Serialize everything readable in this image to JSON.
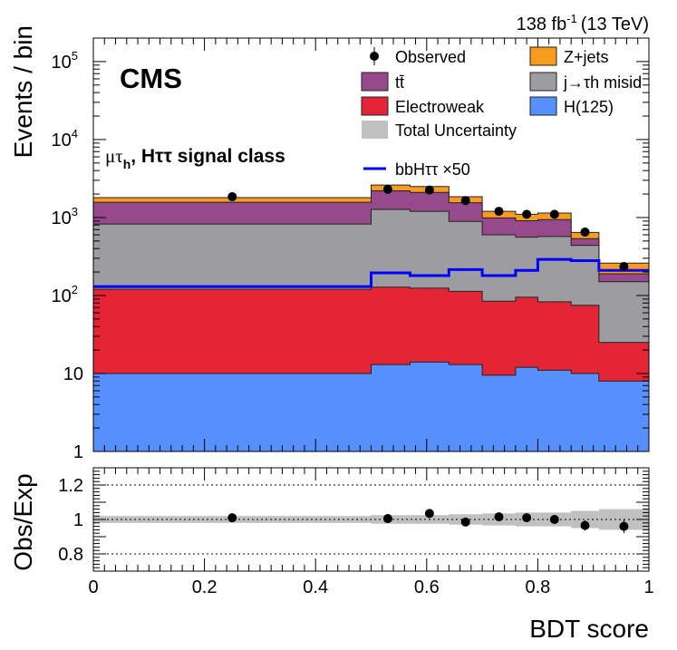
{
  "chart_data": {
    "type": "histogram",
    "lumi_label": "138 fb",
    "lumi_sup": "-1",
    "lumi_energy": "(13 TeV)",
    "experiment": "CMS",
    "category_label": {
      "mu": "μτ",
      "sub": "h",
      "rest": ", Hττ signal class"
    },
    "ylabel": "Events / bin",
    "ratio_ylabel": "Obs/Exp",
    "xlabel": "BDT score",
    "xlim": [
      0,
      1
    ],
    "ylim": [
      1,
      200000
    ],
    "ylog": true,
    "ratio_ylim": [
      0.7,
      1.3
    ],
    "bin_edges": [
      0,
      0.5,
      0.57,
      0.64,
      0.7,
      0.76,
      0.8,
      0.86,
      0.91,
      1.0
    ],
    "stack": [
      {
        "name": "H(125)",
        "color": "#5790fc",
        "values": [
          10,
          13,
          14,
          13,
          9.5,
          12,
          11,
          10,
          8
        ]
      },
      {
        "name": "Electroweak",
        "color": "#e42536",
        "values": [
          110,
          115,
          110,
          100,
          75,
          83,
          72,
          65,
          17
        ]
      },
      {
        "name": "j→τh misid",
        "color": "#9c9ca1",
        "values": [
          705,
          1142,
          1076,
          777,
          515,
          465,
          487,
          365,
          125
        ]
      },
      {
        "name": "tt̄",
        "color": "#964a8b",
        "values": [
          745,
          930,
          900,
          660,
          390,
          350,
          370,
          95,
          40
        ]
      },
      {
        "name": "Z+jets",
        "color": "#f89c20",
        "values": [
          230,
          410,
          400,
          300,
          210,
          190,
          200,
          110,
          70
        ]
      }
    ],
    "signal": {
      "name": "bbHττ ×50",
      "color": "#0000ff",
      "values": [
        130,
        195,
        180,
        215,
        180,
        210,
        290,
        280,
        210
      ]
    },
    "observed": {
      "name": "Observed",
      "x": [
        0.25,
        0.53,
        0.605,
        0.67,
        0.73,
        0.78,
        0.83,
        0.885,
        0.955
      ],
      "y": [
        1850,
        2300,
        2250,
        1650,
        1200,
        1100,
        1100,
        650,
        235
      ]
    },
    "ratio": {
      "x": [
        0.25,
        0.53,
        0.605,
        0.67,
        0.73,
        0.78,
        0.83,
        0.885,
        0.955
      ],
      "y": [
        1.01,
        1.005,
        1.035,
        0.985,
        1.015,
        1.01,
        1.0,
        0.965,
        0.96
      ],
      "err": [
        0.01,
        0.01,
        0.012,
        0.015,
        0.02,
        0.02,
        0.022,
        0.03,
        0.04
      ],
      "unc": [
        0.02,
        0.025,
        0.025,
        0.03,
        0.035,
        0.04,
        0.04,
        0.05,
        0.06
      ]
    },
    "legend": [
      {
        "label": "Observed",
        "kind": "marker"
      },
      {
        "label": "Z+jets",
        "kind": "box",
        "color": "#f89c20"
      },
      {
        "label": "tt̄",
        "kind": "box",
        "color": "#964a8b"
      },
      {
        "label": "j→τh misid",
        "kind": "box",
        "color": "#9c9ca1"
      },
      {
        "label": "Electroweak",
        "kind": "box",
        "color": "#e42536"
      },
      {
        "label": "H(125)",
        "kind": "box",
        "color": "#5790fc"
      },
      {
        "label": "Total Uncertainty",
        "kind": "box",
        "color": "#c0c0c0"
      },
      {
        "label": "bbHττ ×50",
        "kind": "line",
        "color": "#0000ff"
      }
    ],
    "x_ticks": [
      "0",
      "0.2",
      "0.4",
      "0.6",
      "0.8",
      "1"
    ],
    "x_tick_values": [
      0,
      0.2,
      0.4,
      0.6,
      0.8,
      1
    ],
    "y_ticks": [
      {
        "value": 1,
        "label": "1"
      },
      {
        "value": 10,
        "label": "10"
      },
      {
        "value": 100,
        "label": "10",
        "exp": "2"
      },
      {
        "value": 1000,
        "label": "10",
        "exp": "3"
      },
      {
        "value": 10000,
        "label": "10",
        "exp": "4"
      },
      {
        "value": 100000,
        "label": "10",
        "exp": "5"
      }
    ],
    "ratio_ticks": [
      {
        "value": 0.8,
        "label": "0.8"
      },
      {
        "value": 1.0,
        "label": "1"
      },
      {
        "value": 1.2,
        "label": "1.2"
      }
    ]
  }
}
